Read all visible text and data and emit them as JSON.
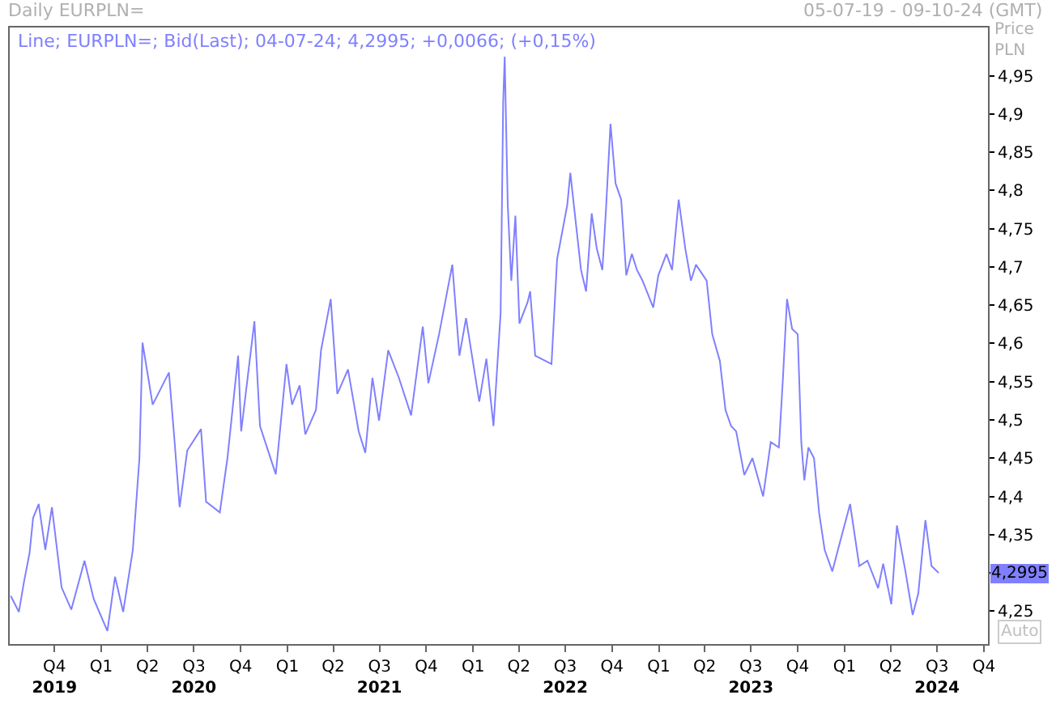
{
  "chart_data": {
    "type": "line",
    "title": "Daily EURPLN=",
    "subtitle": "05-07-19 - 09-10-24 (GMT)",
    "ylabel": "Price\nPLN",
    "annotations": [
      "Line; EURPLN=; Bid(Last); 04-07-24; 4,2995; +0,0066; (+0,15%)",
      "Auto",
      "4,2995"
    ],
    "series": [
      {
        "color": "#8080ff",
        "x": [
          "2019-07-07",
          "2019-07-23",
          "2019-08-02",
          "2019-08-13",
          "2019-08-20",
          "2019-08-31",
          "2019-09-13",
          "2019-09-26",
          "2019-10-15",
          "2019-11-03",
          "2019-11-29",
          "2019-12-17",
          "2020-01-13",
          "2020-01-28",
          "2020-02-13",
          "2020-03-03",
          "2020-03-16",
          "2020-03-22",
          "2020-04-11",
          "2020-05-13",
          "2020-05-23",
          "2020-06-03",
          "2020-06-18",
          "2020-07-15",
          "2020-07-25",
          "2020-08-21",
          "2020-09-05",
          "2020-09-26",
          "2020-10-02",
          "2020-10-28",
          "2020-11-08",
          "2020-12-09",
          "2020-12-30",
          "2021-01-10",
          "2021-01-25",
          "2021-02-05",
          "2021-02-26",
          "2021-03-08",
          "2021-03-27",
          "2021-04-09",
          "2021-04-30",
          "2021-05-21",
          "2021-06-03",
          "2021-06-17",
          "2021-06-30",
          "2021-07-18",
          "2021-08-08",
          "2021-09-01",
          "2021-09-24",
          "2021-10-05",
          "2021-10-26",
          "2021-11-21",
          "2021-12-05",
          "2021-12-18",
          "2022-01-13",
          "2022-01-27",
          "2022-02-10",
          "2022-02-24",
          "2022-03-01",
          "2022-03-04",
          "2022-03-10",
          "2022-03-17",
          "2022-03-25",
          "2022-04-02",
          "2022-04-18",
          "2022-04-23",
          "2022-05-03",
          "2022-06-04",
          "2022-06-15",
          "2022-07-05",
          "2022-07-11",
          "2022-08-01",
          "2022-08-11",
          "2022-08-22",
          "2022-09-01",
          "2022-09-12",
          "2022-09-19",
          "2022-09-28",
          "2022-10-08",
          "2022-10-19",
          "2022-10-29",
          "2022-11-09",
          "2022-11-19",
          "2022-11-30",
          "2022-12-21",
          "2022-12-31",
          "2023-01-16",
          "2023-01-27",
          "2023-02-09",
          "2023-02-22",
          "2023-03-05",
          "2023-03-15",
          "2023-04-05",
          "2023-04-16",
          "2023-05-01",
          "2023-05-12",
          "2023-05-23",
          "2023-06-02",
          "2023-06-18",
          "2023-07-04",
          "2023-07-25",
          "2023-08-09",
          "2023-08-25",
          "2023-09-02",
          "2023-09-10",
          "2023-09-20",
          "2023-10-01",
          "2023-10-08",
          "2023-10-14",
          "2023-10-22",
          "2023-11-02",
          "2023-11-12",
          "2023-11-23",
          "2023-12-08",
          "2023-12-19",
          "2024-01-12",
          "2024-01-30",
          "2024-02-15",
          "2024-03-07",
          "2024-03-17",
          "2024-04-02",
          "2024-04-13",
          "2024-04-29",
          "2024-05-14",
          "2024-05-25",
          "2024-06-08",
          "2024-06-20",
          "2024-07-04"
        ],
        "values": [
          4.27,
          4.249,
          4.288,
          4.326,
          4.372,
          4.39,
          4.33,
          4.386,
          4.281,
          4.252,
          4.316,
          4.266,
          4.224,
          4.295,
          4.249,
          4.33,
          4.45,
          4.601,
          4.52,
          4.562,
          4.481,
          4.386,
          4.46,
          4.488,
          4.393,
          4.379,
          4.45,
          4.584,
          4.485,
          4.629,
          4.492,
          4.429,
          4.573,
          4.52,
          4.545,
          4.481,
          4.513,
          4.591,
          4.658,
          4.534,
          4.566,
          4.485,
          4.457,
          4.555,
          4.499,
          4.591,
          4.555,
          4.506,
          4.622,
          4.548,
          4.612,
          4.703,
          4.584,
          4.633,
          4.524,
          4.58,
          4.492,
          4.64,
          4.915,
          4.975,
          4.781,
          4.682,
          4.767,
          4.626,
          4.654,
          4.668,
          4.584,
          4.573,
          4.71,
          4.781,
          4.823,
          4.696,
          4.668,
          4.77,
          4.724,
          4.696,
          4.774,
          4.887,
          4.809,
          4.788,
          4.689,
          4.717,
          4.696,
          4.682,
          4.647,
          4.689,
          4.717,
          4.696,
          4.788,
          4.724,
          4.682,
          4.703,
          4.682,
          4.612,
          4.577,
          4.513,
          4.492,
          4.485,
          4.428,
          4.45,
          4.4,
          4.471,
          4.464,
          4.555,
          4.658,
          4.619,
          4.612,
          4.471,
          4.421,
          4.464,
          4.45,
          4.379,
          4.33,
          4.302,
          4.33,
          4.39,
          4.309,
          4.316,
          4.28,
          4.312,
          4.259,
          4.362,
          4.305,
          4.245,
          4.273,
          4.369,
          4.309,
          4.3
        ]
      }
    ],
    "xlim": [
      "2019-07-05",
      "2024-10-09"
    ],
    "xticks": [
      {
        "value": "2019-10-01",
        "label": "Q4\n2019"
      },
      {
        "value": "2020-01-01",
        "label": "Q1"
      },
      {
        "value": "2020-04-01",
        "label": "Q2"
      },
      {
        "value": "2020-07-01",
        "label": "Q3\n2020"
      },
      {
        "value": "2020-10-01",
        "label": "Q4"
      },
      {
        "value": "2021-01-01",
        "label": "Q1"
      },
      {
        "value": "2021-04-01",
        "label": "Q2"
      },
      {
        "value": "2021-07-01",
        "label": "Q3\n2021"
      },
      {
        "value": "2021-10-01",
        "label": "Q4"
      },
      {
        "value": "2022-01-01",
        "label": "Q1"
      },
      {
        "value": "2022-04-01",
        "label": "Q2"
      },
      {
        "value": "2022-07-01",
        "label": "Q3\n2022"
      },
      {
        "value": "2022-10-01",
        "label": "Q4"
      },
      {
        "value": "2023-01-01",
        "label": "Q1"
      },
      {
        "value": "2023-04-01",
        "label": "Q2"
      },
      {
        "value": "2023-07-01",
        "label": "Q3\n2023"
      },
      {
        "value": "2023-10-01",
        "label": "Q4"
      },
      {
        "value": "2024-01-01",
        "label": "Q1"
      },
      {
        "value": "2024-04-01",
        "label": "Q2"
      },
      {
        "value": "2024-07-01",
        "label": "Q3\n2024"
      },
      {
        "value": "2024-10-01",
        "label": "Q4"
      }
    ],
    "ylim": [
      4.207,
      5.013
    ],
    "yticks": [
      {
        "value": 4.25,
        "label": "4,25"
      },
      {
        "value": 4.3,
        "label": null
      },
      {
        "value": 4.35,
        "label": "4,35"
      },
      {
        "value": 4.4,
        "label": "4,4"
      },
      {
        "value": 4.45,
        "label": "4,45"
      },
      {
        "value": 4.5,
        "label": "4,5"
      },
      {
        "value": 4.55,
        "label": "4,55"
      },
      {
        "value": 4.6,
        "label": "4,6"
      },
      {
        "value": 4.65,
        "label": "4,65"
      },
      {
        "value": 4.7,
        "label": "4,7"
      },
      {
        "value": 4.75,
        "label": "4,75"
      },
      {
        "value": 4.8,
        "label": "4,8"
      },
      {
        "value": 4.85,
        "label": "4,85"
      },
      {
        "value": 4.9,
        "label": "4,9"
      },
      {
        "value": 4.95,
        "label": "4,95"
      }
    ],
    "grid": false,
    "marker": "none",
    "line_style": "solid"
  }
}
